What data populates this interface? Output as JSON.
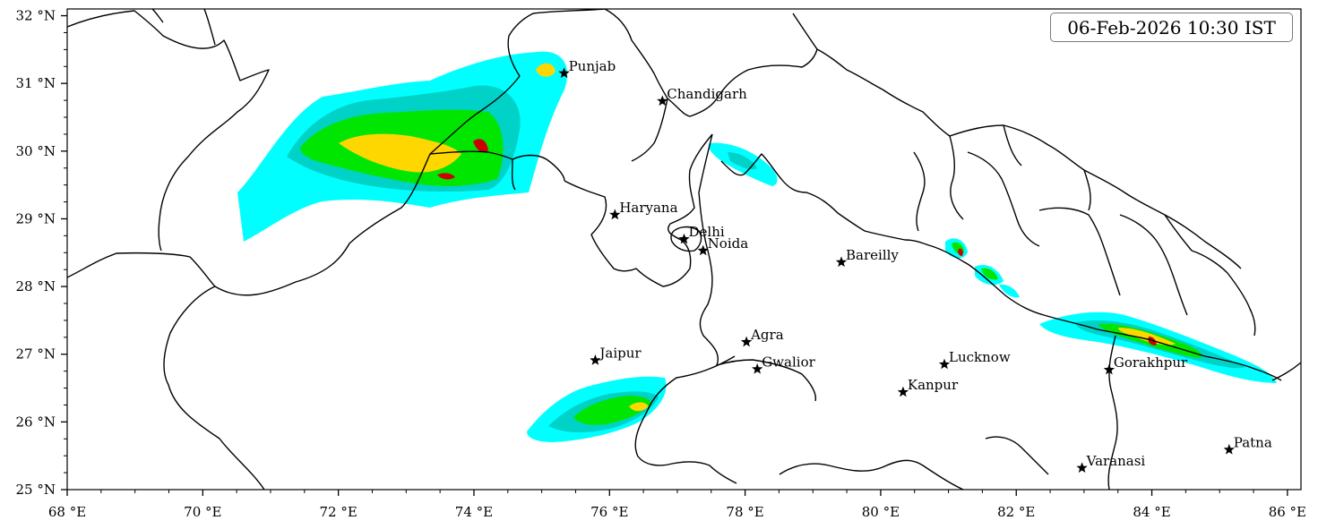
{
  "timestamp": "06-Feb-2026 10:30 IST",
  "axes": {
    "lon_range": [
      68,
      86.2
    ],
    "lat_range": [
      25,
      32.1
    ],
    "x_ticks": [
      {
        "value": 68,
        "label": "68 °E"
      },
      {
        "value": 70,
        "label": "70 °E"
      },
      {
        "value": 72,
        "label": "72 °E"
      },
      {
        "value": 74,
        "label": "74 °E"
      },
      {
        "value": 76,
        "label": "76 °E"
      },
      {
        "value": 78,
        "label": "78 °E"
      },
      {
        "value": 80,
        "label": "80 °E"
      },
      {
        "value": 82,
        "label": "82 °E"
      },
      {
        "value": 84,
        "label": "84 °E"
      },
      {
        "value": 86,
        "label": "86 °E"
      }
    ],
    "y_ticks": [
      {
        "value": 25,
        "label": "25 °N"
      },
      {
        "value": 26,
        "label": "26 °N"
      },
      {
        "value": 27,
        "label": "27 °N"
      },
      {
        "value": 28,
        "label": "28 °N"
      },
      {
        "value": 29,
        "label": "29 °N"
      },
      {
        "value": 30,
        "label": "30 °N"
      },
      {
        "value": 31,
        "label": "31 °N"
      },
      {
        "value": 32,
        "label": "32 °N"
      }
    ]
  },
  "cities": [
    {
      "name": "Punjab",
      "lon": 75.33,
      "lat": 31.15
    },
    {
      "name": "Chandigarh",
      "lon": 76.78,
      "lat": 30.74
    },
    {
      "name": "Haryana",
      "lon": 76.08,
      "lat": 29.06
    },
    {
      "name": "Delhi",
      "lon": 77.1,
      "lat": 28.7
    },
    {
      "name": "Noida",
      "lon": 77.38,
      "lat": 28.53
    },
    {
      "name": "Bareilly",
      "lon": 79.42,
      "lat": 28.36
    },
    {
      "name": "Agra",
      "lon": 78.02,
      "lat": 27.18
    },
    {
      "name": "Jaipur",
      "lon": 75.79,
      "lat": 26.91
    },
    {
      "name": "Gwalior",
      "lon": 78.18,
      "lat": 26.78
    },
    {
      "name": "Lucknow",
      "lon": 80.94,
      "lat": 26.85
    },
    {
      "name": "Kanpur",
      "lon": 80.33,
      "lat": 26.44
    },
    {
      "name": "Gorakhpur",
      "lon": 83.37,
      "lat": 26.77
    },
    {
      "name": "Varanasi",
      "lon": 82.97,
      "lat": 25.32
    },
    {
      "name": "Patna",
      "lon": 85.14,
      "lat": 25.59
    }
  ],
  "colors": {
    "level1": "#00ffff",
    "level2": "#00d2c8",
    "level3": "#00e600",
    "level4": "#ffd700",
    "level5": "#cc0000"
  }
}
